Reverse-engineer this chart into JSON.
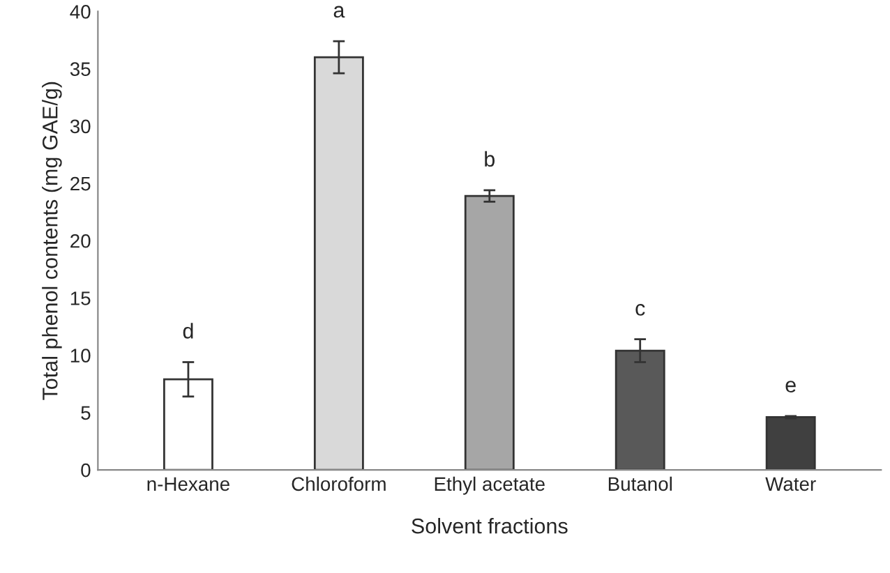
{
  "chart_data": {
    "type": "bar",
    "xlabel": "Solvent fractions",
    "ylabel": "Total phenol contents (mg GAE/g)",
    "categories": [
      "n-Hexane",
      "Chloroform",
      "Ethyl acetate",
      "Butanol",
      "Water"
    ],
    "values": [
      7.9,
      36.0,
      23.9,
      10.4,
      4.6
    ],
    "errors": [
      1.5,
      1.4,
      0.5,
      1.0,
      0.1
    ],
    "colors": [
      "#ffffff",
      "#d9d9d9",
      "#a6a6a6",
      "#595959",
      "#404040"
    ],
    "ylim": [
      0,
      40
    ],
    "yticks": [
      0,
      5,
      10,
      15,
      20,
      25,
      30,
      35,
      40
    ],
    "grid": false,
    "legend": false,
    "annotations": [
      "d",
      "a",
      "b",
      "c",
      "e"
    ]
  }
}
